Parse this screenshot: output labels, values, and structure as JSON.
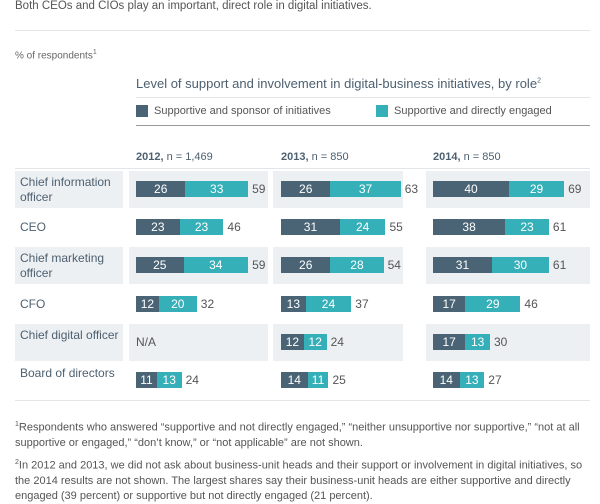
{
  "subtitle": "Both CEOs and CIOs play an important, direct role in digital initiatives.",
  "chart_data": {
    "type": "bar",
    "stacked": true,
    "orientation": "horizontal",
    "unit_label": "% of respondents",
    "unit_footnote": "1",
    "title": "Level of support and involvement in digital-business initiatives, by role",
    "title_footnote": "2",
    "legend_position": "top",
    "series": [
      {
        "name": "Supportive and sponsor of initiatives",
        "color": "#4a6475"
      },
      {
        "name": "Supportive and directly engaged",
        "color": "#36b0b8"
      }
    ],
    "panels": [
      {
        "year": "2012,",
        "n": "n = 1,469"
      },
      {
        "year": "2013,",
        "n": "n = 850"
      },
      {
        "year": "2014,",
        "n": "n = 850"
      }
    ],
    "categories": [
      "Chief information officer",
      "CEO",
      "Chief marketing officer",
      "CFO",
      "Chief digital officer",
      "Board of directors"
    ],
    "values": [
      [
        [
          26,
          33,
          59
        ],
        [
          26,
          37,
          63
        ],
        [
          40,
          29,
          69
        ]
      ],
      [
        [
          23,
          23,
          46
        ],
        [
          31,
          24,
          55
        ],
        [
          38,
          23,
          61
        ]
      ],
      [
        [
          25,
          34,
          59
        ],
        [
          26,
          28,
          54
        ],
        [
          31,
          30,
          61
        ]
      ],
      [
        [
          12,
          20,
          32
        ],
        [
          13,
          24,
          37
        ],
        [
          17,
          29,
          46
        ]
      ],
      [
        null,
        [
          12,
          12,
          24
        ],
        [
          17,
          13,
          30
        ]
      ],
      [
        [
          11,
          13,
          24
        ],
        [
          14,
          11,
          25
        ],
        [
          14,
          13,
          27
        ]
      ]
    ],
    "na_label": "N/A"
  },
  "footnotes": [
    {
      "mark": "1",
      "text": "Respondents who answered “supportive and not directly engaged,” “neither unsupportive nor supportive,” “not at all supportive or engaged,” “don’t know,” or “not applicable” are not shown."
    },
    {
      "mark": "2",
      "text": "In 2012 and 2013, we did not ask about business-unit heads and their support or involvement in digital initiatives, so the 2014 results are not shown. The largest shares say their business-unit heads are either supportive and directly engaged (39 percent) or supportive but not directly engaged (21 percent)."
    }
  ]
}
